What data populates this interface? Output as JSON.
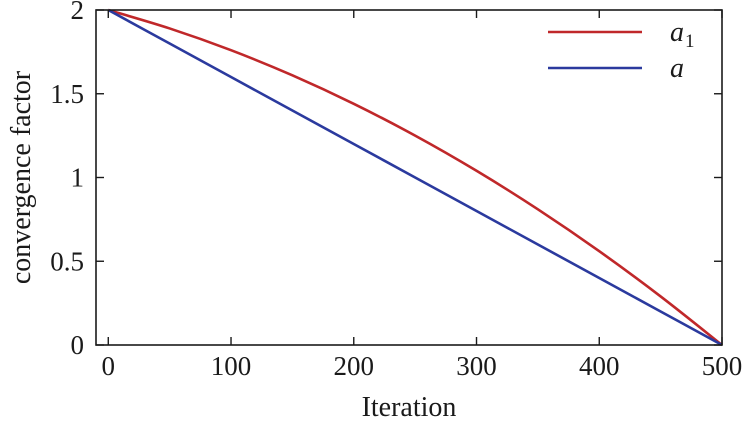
{
  "chart_data": {
    "type": "line",
    "title": "",
    "xlabel": "Iteration",
    "ylabel": "convergence factor",
    "xlim": [
      -10,
      500
    ],
    "ylim": [
      0,
      2
    ],
    "xticks": [
      0,
      100,
      200,
      300,
      400,
      500
    ],
    "xtick_labels": [
      "0",
      "100",
      "200",
      "300",
      "400",
      "500"
    ],
    "yticks": [
      0,
      0.5,
      1,
      1.5,
      2
    ],
    "ytick_labels": [
      "0",
      "0.5",
      "1",
      "1.5",
      "2"
    ],
    "grid": false,
    "legend_position": "top-right",
    "series": [
      {
        "name": "a",
        "subscript": "1",
        "color": "#c0282a",
        "x": [
          0,
          50,
          100,
          150,
          200,
          250,
          300,
          350,
          400,
          450,
          500
        ],
        "y": [
          2,
          1.89,
          1.76,
          1.61,
          1.44,
          1.25,
          1.04,
          0.81,
          0.56,
          0.29,
          0
        ]
      },
      {
        "name": "a",
        "subscript": "",
        "color": "#2b3a9e",
        "x": [
          0,
          50,
          100,
          150,
          200,
          250,
          300,
          350,
          400,
          450,
          500
        ],
        "y": [
          2,
          1.8,
          1.6,
          1.4,
          1.2,
          1.0,
          0.8,
          0.6,
          0.4,
          0.2,
          0
        ]
      }
    ]
  }
}
